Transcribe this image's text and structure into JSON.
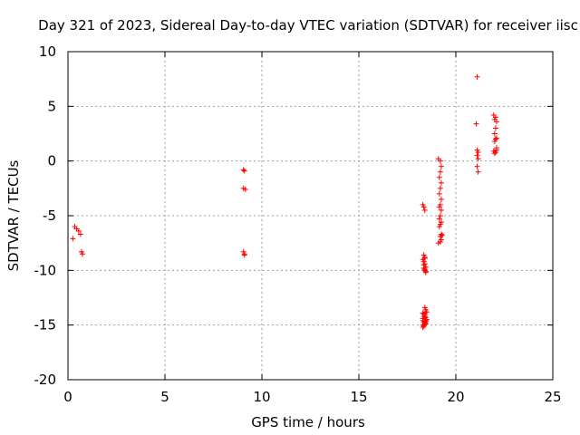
{
  "chart_data": {
    "type": "scatter",
    "title": "Day 321 of 2023, Sidereal Day-to-day VTEC variation (SDTVAR) for receiver iisc",
    "xlabel": "GPS time / hours",
    "ylabel": "SDTVAR / TECUs",
    "xlim": [
      0,
      25
    ],
    "ylim": [
      -20,
      10
    ],
    "xticks": [
      0,
      5,
      10,
      15,
      20,
      25
    ],
    "yticks": [
      -20,
      -15,
      -10,
      -5,
      0,
      5,
      10
    ],
    "grid": true,
    "color": "#ff0000",
    "marker": "plus",
    "series": [
      {
        "name": "SDTVAR",
        "x": [
          0.25,
          0.35,
          0.45,
          0.55,
          0.65,
          0.7,
          0.75,
          9.05,
          9.1,
          9.05,
          9.15,
          9.05,
          9.1,
          9.1,
          18.3,
          18.35,
          18.4,
          18.35,
          18.4,
          18.3,
          18.35,
          18.4,
          18.45,
          18.35,
          18.4,
          18.45,
          18.4,
          18.45,
          18.5,
          18.3,
          18.35,
          18.4,
          18.45,
          18.5,
          18.3,
          18.35,
          18.4,
          18.45,
          18.3,
          18.35,
          18.4,
          18.45,
          18.3,
          18.35,
          18.4,
          18.45,
          18.3,
          18.35,
          18.4,
          18.45,
          18.35,
          18.4,
          18.45,
          18.4,
          19.1,
          19.2,
          19.25,
          19.2,
          19.15,
          19.25,
          19.2,
          19.15,
          19.25,
          19.2,
          19.15,
          19.25,
          19.2,
          19.15,
          19.25,
          19.2,
          19.15,
          19.25,
          19.2,
          19.3,
          19.25,
          19.2,
          19.1,
          21.1,
          21.05,
          21.1,
          21.15,
          21.1,
          21.15,
          21.1,
          21.15,
          21.95,
          22.05,
          22.0,
          22.1,
          22.05,
          22.0,
          22.1,
          22.05,
          22.0,
          22.1,
          21.95,
          22.05,
          22.0,
          22.1
        ],
        "y": [
          -7.1,
          -6.0,
          -6.2,
          -6.4,
          -6.7,
          -8.3,
          -8.5,
          -0.8,
          -0.9,
          -2.5,
          -2.6,
          -8.3,
          -8.5,
          -8.6,
          -4.0,
          -4.2,
          -4.5,
          -8.6,
          -8.8,
          -9.0,
          -9.2,
          -9.4,
          -9.7,
          -9.8,
          -10.0,
          -10.2,
          -13.4,
          -13.6,
          -13.8,
          -13.9,
          -14.0,
          -14.2,
          -14.3,
          -14.5,
          -14.6,
          -14.7,
          -14.8,
          -14.9,
          -15.0,
          -15.1,
          -14.8,
          -14.6,
          -14.4,
          -14.2,
          -14.0,
          -13.8,
          -15.2,
          -15.0,
          -14.9,
          -14.7,
          -9.5,
          -9.9,
          -10.1,
          -8.9,
          0.2,
          0.0,
          -0.5,
          -1.0,
          -1.5,
          -2.0,
          -2.5,
          -3.0,
          -3.5,
          -4.0,
          -4.2,
          -4.5,
          -5.0,
          -5.3,
          -5.6,
          -5.8,
          -6.0,
          -6.7,
          -6.9,
          -6.8,
          -7.2,
          -7.4,
          -7.5,
          7.7,
          3.4,
          1.0,
          0.8,
          0.5,
          0.2,
          -0.5,
          -1.0,
          4.2,
          4.0,
          3.8,
          3.6,
          3.0,
          2.5,
          2.1,
          2.0,
          1.8,
          1.2,
          0.9,
          0.8,
          0.7,
          1.0
        ]
      }
    ]
  }
}
